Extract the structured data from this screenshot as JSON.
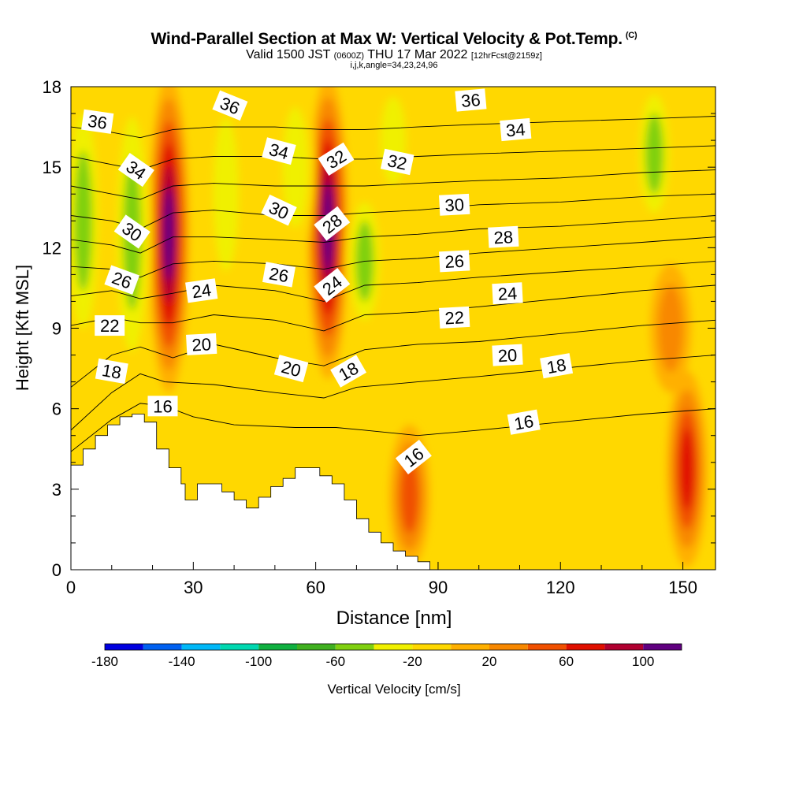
{
  "header": {
    "title": "Wind-Parallel Section at Max W: Vertical Velocity & Pot.Temp.",
    "copyright": "(C)",
    "valid_prefix": "Valid 1500 JST",
    "valid_utc": "(0600Z)",
    "valid_date": "THU 17 Mar 2022",
    "forecast": "[12hrFcst@2159z]",
    "grid_info": "i,j,k,angle=34,23,24,96"
  },
  "chart_data": {
    "type": "heatmap",
    "xlabel": "Distance [nm]",
    "ylabel": "Height [Kft MSL]",
    "xlim": [
      0,
      158
    ],
    "ylim": [
      0,
      18
    ],
    "xticks": [
      0,
      30,
      60,
      90,
      120,
      150
    ],
    "yticks": [
      0,
      3,
      6,
      9,
      12,
      15,
      18
    ],
    "colorbar": {
      "label": "Vertical Velocity [cm/s]",
      "ticks": [
        -180,
        -140,
        -100,
        -60,
        -20,
        20,
        60,
        100
      ],
      "bins": [
        -180,
        -160,
        -140,
        -120,
        -100,
        -80,
        -60,
        -40,
        -20,
        0,
        20,
        40,
        60,
        80,
        100,
        120
      ],
      "colors": [
        "#0000e0",
        "#0060f0",
        "#00b8f8",
        "#00d8b0",
        "#10b040",
        "#40b020",
        "#80d010",
        "#f0f000",
        "#ffd800",
        "#ffb000",
        "#f88800",
        "#f05000",
        "#e01000",
        "#b00030",
        "#600080"
      ]
    },
    "updraft_cores": [
      {
        "x": 24,
        "bottom": 7,
        "top": 18,
        "peak_cms": 110
      },
      {
        "x": 63,
        "bottom": 7.5,
        "top": 18,
        "peak_cms": 110
      },
      {
        "x": 83,
        "bottom": 0.5,
        "top": 5,
        "peak_cms": 60
      },
      {
        "x": 151,
        "bottom": 0.5,
        "top": 7,
        "peak_cms": 80
      },
      {
        "x": 147,
        "bottom": 7,
        "top": 11,
        "peak_cms": 30
      }
    ],
    "downdraft_bands": [
      {
        "x": 3,
        "bottom": 8,
        "top": 18,
        "min_cms": -60
      },
      {
        "x": 15,
        "bottom": 7,
        "top": 18,
        "min_cms": -60
      },
      {
        "x": 38,
        "bottom": 10,
        "top": 18,
        "min_cms": -40
      },
      {
        "x": 55,
        "bottom": 12,
        "top": 18,
        "min_cms": -40
      },
      {
        "x": 72,
        "bottom": 9,
        "top": 14,
        "min_cms": -60
      },
      {
        "x": 79,
        "bottom": 14,
        "top": 18,
        "min_cms": -40
      },
      {
        "x": 143,
        "bottom": 13,
        "top": 18,
        "min_cms": -60
      }
    ],
    "terrain": {
      "x": [
        0,
        3,
        3,
        6,
        6,
        9,
        9,
        12,
        12,
        15,
        15,
        18,
        18,
        21,
        21,
        24,
        24,
        27,
        27,
        28,
        28,
        31,
        31,
        34,
        34,
        37,
        37,
        40,
        40,
        43,
        43,
        46,
        46,
        49,
        49,
        52,
        52,
        55,
        55,
        58,
        58,
        61,
        61,
        64,
        64,
        67,
        67,
        70,
        70,
        73,
        73,
        76,
        76,
        79,
        79,
        82,
        82,
        85,
        85,
        88,
        88
      ],
      "y": [
        3.9,
        3.9,
        4.5,
        4.5,
        5.0,
        5.0,
        5.4,
        5.4,
        5.7,
        5.7,
        5.8,
        5.8,
        5.5,
        5.5,
        4.5,
        4.5,
        3.8,
        3.8,
        3.2,
        3.2,
        2.6,
        2.6,
        3.2,
        3.2,
        3.2,
        3.2,
        2.9,
        2.9,
        2.6,
        2.6,
        2.3,
        2.3,
        2.7,
        2.7,
        3.1,
        3.1,
        3.4,
        3.4,
        3.8,
        3.8,
        3.8,
        3.8,
        3.5,
        3.5,
        3.2,
        3.2,
        2.6,
        2.6,
        1.9,
        1.9,
        1.4,
        1.4,
        1.0,
        1.0,
        0.7,
        0.7,
        0.5,
        0.5,
        0.3,
        0.3,
        0.3
      ]
    },
    "isentropes": [
      {
        "level": 16,
        "x": [
          0,
          10,
          17,
          23,
          30,
          40,
          55,
          65,
          72,
          85,
          100,
          120,
          140,
          158
        ],
        "y": [
          4.4,
          5.6,
          6.2,
          6.1,
          5.7,
          5.4,
          5.3,
          5.3,
          5.2,
          5.0,
          5.2,
          5.5,
          5.8,
          6.0
        ]
      },
      {
        "level": 18,
        "x": [
          0,
          10,
          17,
          23,
          35,
          50,
          62,
          70,
          85,
          100,
          120,
          140,
          158
        ],
        "y": [
          5.2,
          6.6,
          7.3,
          7.0,
          6.9,
          6.6,
          6.4,
          6.8,
          7.0,
          7.2,
          7.5,
          7.8,
          8.0
        ]
      },
      {
        "level": 20,
        "x": [
          0,
          10,
          17,
          25,
          35,
          50,
          62,
          72,
          85,
          100,
          120,
          140,
          158
        ],
        "y": [
          6.8,
          8.0,
          8.3,
          7.9,
          8.4,
          7.9,
          7.6,
          8.2,
          8.4,
          8.5,
          8.8,
          9.1,
          9.3
        ]
      },
      {
        "level": 22,
        "x": [
          0,
          10,
          17,
          25,
          35,
          50,
          62,
          72,
          85,
          100,
          120,
          140,
          158
        ],
        "y": [
          9.1,
          9.4,
          9.2,
          9.2,
          9.5,
          9.3,
          8.9,
          9.5,
          9.6,
          9.8,
          10.1,
          10.4,
          10.6
        ]
      },
      {
        "level": 24,
        "x": [
          0,
          10,
          17,
          25,
          35,
          50,
          62,
          72,
          85,
          100,
          120,
          140,
          158
        ],
        "y": [
          10.2,
          10.4,
          10.1,
          10.3,
          10.6,
          10.4,
          10.0,
          10.6,
          10.7,
          10.9,
          11.1,
          11.3,
          11.5
        ]
      },
      {
        "level": 26,
        "x": [
          0,
          10,
          17,
          25,
          35,
          50,
          62,
          72,
          85,
          100,
          120,
          140,
          158
        ],
        "y": [
          11.3,
          11.2,
          10.9,
          11.4,
          11.5,
          11.4,
          11.2,
          11.5,
          11.6,
          11.8,
          12.0,
          12.2,
          12.4
        ]
      },
      {
        "level": 28,
        "x": [
          0,
          10,
          17,
          25,
          35,
          50,
          62,
          72,
          85,
          100,
          120,
          140,
          158
        ],
        "y": [
          12.3,
          12.1,
          11.8,
          12.4,
          12.4,
          12.3,
          12.2,
          12.4,
          12.5,
          12.7,
          12.8,
          13.0,
          13.2
        ]
      },
      {
        "level": 30,
        "x": [
          0,
          10,
          17,
          25,
          35,
          50,
          62,
          72,
          85,
          100,
          120,
          140,
          158
        ],
        "y": [
          13.2,
          13.0,
          12.7,
          13.3,
          13.4,
          13.2,
          13.2,
          13.3,
          13.4,
          13.6,
          13.7,
          13.9,
          14.0
        ]
      },
      {
        "level": 32,
        "x": [
          0,
          10,
          17,
          25,
          35,
          50,
          62,
          72,
          85,
          100,
          120,
          140,
          158
        ],
        "y": [
          14.3,
          14.0,
          13.8,
          14.3,
          14.4,
          14.3,
          14.3,
          14.3,
          14.4,
          14.5,
          14.6,
          14.8,
          14.9
        ]
      },
      {
        "level": 34,
        "x": [
          0,
          10,
          17,
          25,
          35,
          50,
          62,
          72,
          85,
          100,
          120,
          140,
          158
        ],
        "y": [
          15.4,
          15.1,
          14.9,
          15.3,
          15.4,
          15.4,
          15.3,
          15.3,
          15.4,
          15.5,
          15.6,
          15.7,
          15.8
        ]
      },
      {
        "level": 36,
        "x": [
          0,
          10,
          17,
          25,
          35,
          50,
          62,
          72,
          85,
          100,
          120,
          140,
          158
        ],
        "y": [
          16.5,
          16.3,
          16.1,
          16.4,
          16.5,
          16.5,
          16.4,
          16.4,
          16.5,
          16.6,
          16.7,
          16.8,
          16.9
        ]
      }
    ],
    "contour_labels": [
      {
        "text": "36",
        "x": 6.5,
        "y": 16.7,
        "angle": 8
      },
      {
        "text": "36",
        "x": 39,
        "y": 17.3,
        "angle": 22
      },
      {
        "text": "36",
        "x": 98,
        "y": 17.5,
        "angle": -5
      },
      {
        "text": "34",
        "x": 16,
        "y": 14.9,
        "angle": 35
      },
      {
        "text": "34",
        "x": 51,
        "y": 15.6,
        "angle": 15
      },
      {
        "text": "34",
        "x": 109,
        "y": 16.4,
        "angle": -5
      },
      {
        "text": "32",
        "x": 65,
        "y": 15.3,
        "angle": -32
      },
      {
        "text": "32",
        "x": 80,
        "y": 15.2,
        "angle": 12
      },
      {
        "text": "30",
        "x": 15,
        "y": 12.6,
        "angle": 35
      },
      {
        "text": "30",
        "x": 51,
        "y": 13.4,
        "angle": 25
      },
      {
        "text": "30",
        "x": 94,
        "y": 13.6,
        "angle": -3
      },
      {
        "text": "28",
        "x": 64,
        "y": 12.9,
        "angle": -38
      },
      {
        "text": "28",
        "x": 106,
        "y": 12.4,
        "angle": -3
      },
      {
        "text": "26",
        "x": 12.5,
        "y": 10.8,
        "angle": 20
      },
      {
        "text": "26",
        "x": 51,
        "y": 11.0,
        "angle": 10
      },
      {
        "text": "26",
        "x": 94,
        "y": 11.5,
        "angle": -3
      },
      {
        "text": "24",
        "x": 32,
        "y": 10.4,
        "angle": -8
      },
      {
        "text": "24",
        "x": 64,
        "y": 10.6,
        "angle": -38
      },
      {
        "text": "24",
        "x": 107,
        "y": 10.3,
        "angle": -3
      },
      {
        "text": "22",
        "x": 9.5,
        "y": 9.1,
        "angle": 0
      },
      {
        "text": "22",
        "x": 94,
        "y": 9.4,
        "angle": -3
      },
      {
        "text": "20",
        "x": 32,
        "y": 8.4,
        "angle": -3
      },
      {
        "text": "20",
        "x": 54,
        "y": 7.5,
        "angle": 15
      },
      {
        "text": "20",
        "x": 107,
        "y": 8.0,
        "angle": -3
      },
      {
        "text": "18",
        "x": 10,
        "y": 7.4,
        "angle": 10
      },
      {
        "text": "18",
        "x": 68,
        "y": 7.4,
        "angle": -30
      },
      {
        "text": "18",
        "x": 119,
        "y": 7.6,
        "angle": -10
      },
      {
        "text": "16",
        "x": 22.5,
        "y": 6.1,
        "angle": 0
      },
      {
        "text": "16",
        "x": 111,
        "y": 5.5,
        "angle": -10
      },
      {
        "text": "16",
        "x": 84,
        "y": 4.2,
        "angle": -38
      }
    ]
  }
}
